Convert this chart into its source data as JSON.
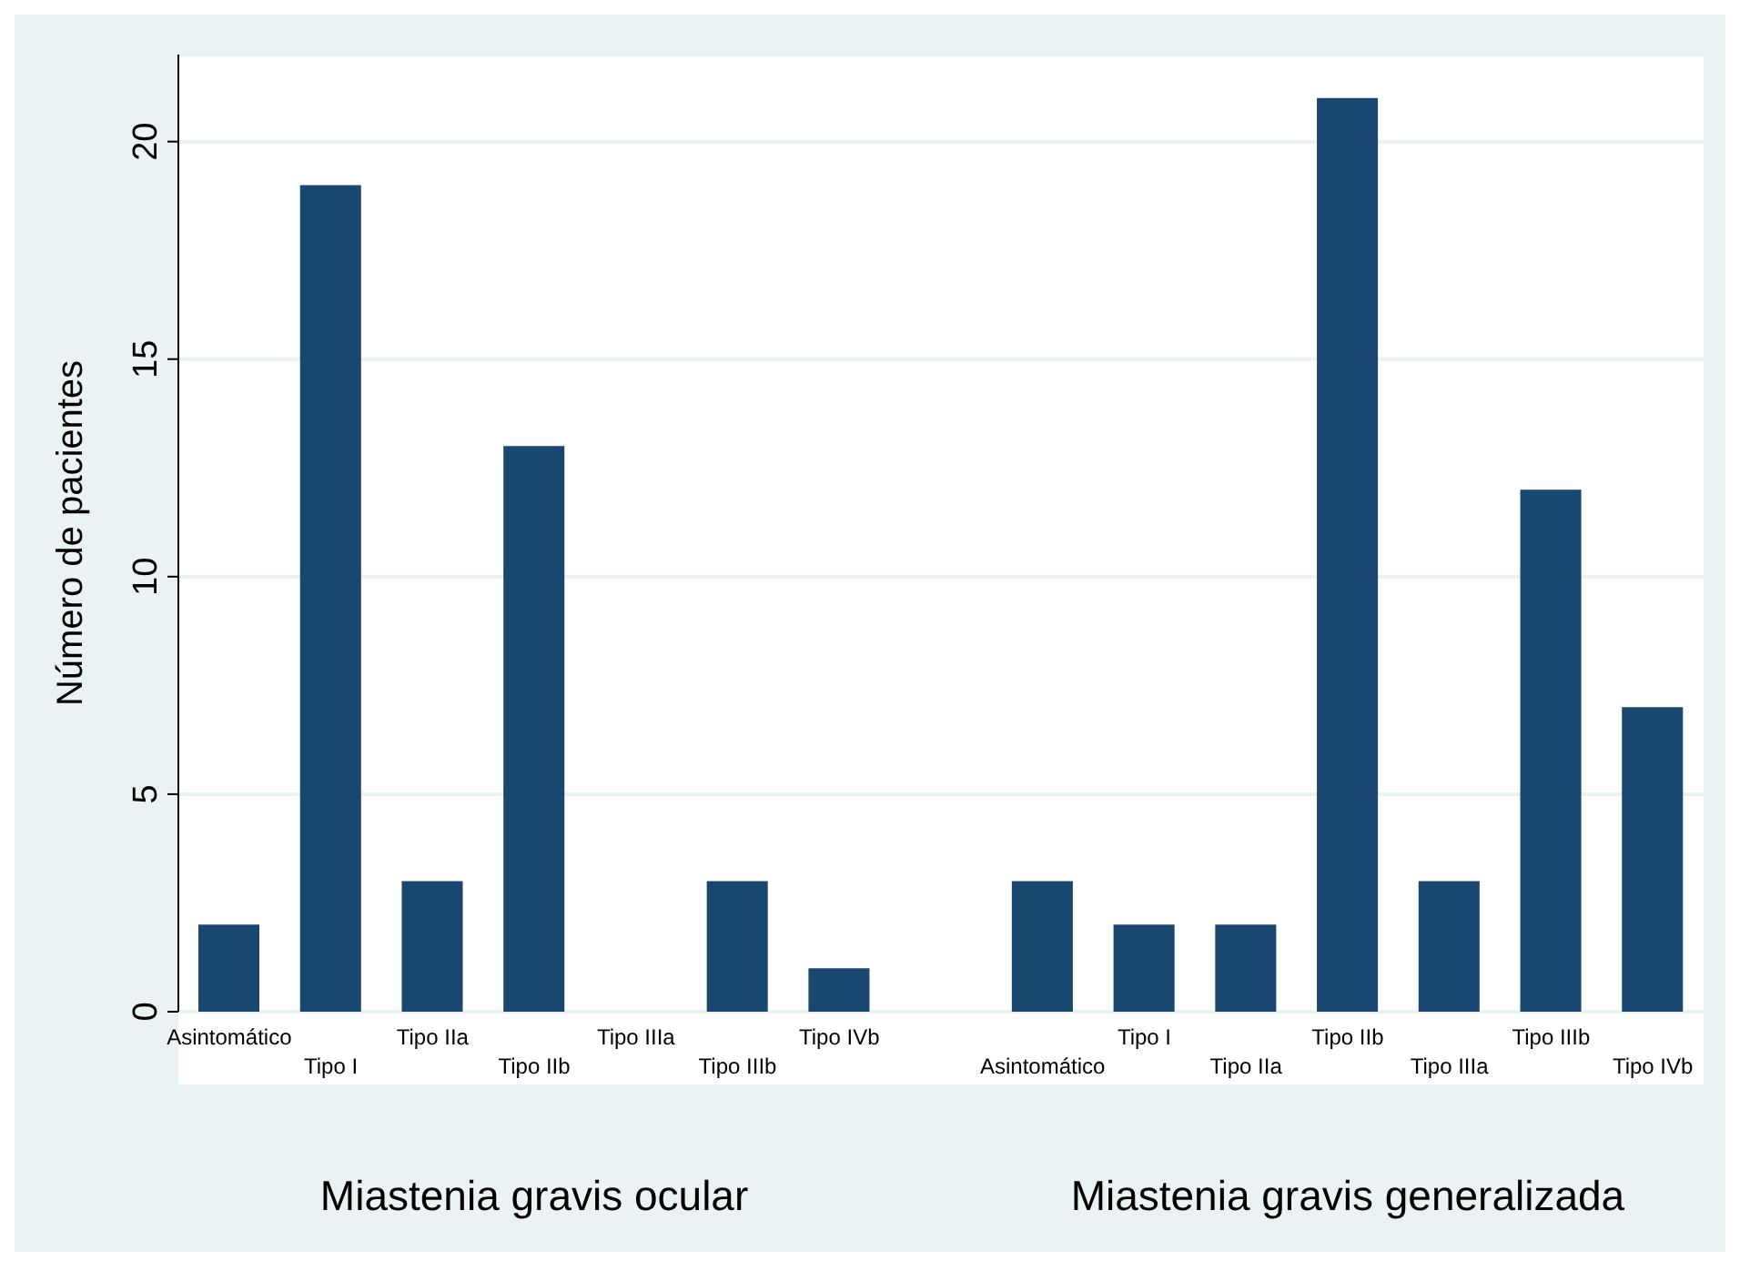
{
  "chart_data": {
    "type": "bar",
    "ylabel": "Número de pacientes",
    "categories": [
      "Asintomático",
      "Tipo I",
      "Tipo IIa",
      "Tipo IIb",
      "Tipo IIIa",
      "Tipo IIIb",
      "Tipo IVb",
      null,
      "Asintomático",
      "Tipo I",
      "Tipo IIa",
      "Tipo IIb",
      "Tipo IIIa",
      "Tipo IIIb",
      "Tipo IVb"
    ],
    "values": [
      2,
      19,
      3,
      13,
      0,
      3,
      1,
      null,
      3,
      2,
      2,
      21,
      3,
      12,
      7
    ],
    "color": "#1a476f",
    "ylim": [
      0,
      22
    ],
    "yticks": [
      0,
      5,
      10,
      15,
      20
    ],
    "grid": "y",
    "annotations": [
      "Miastenia gravis ocular",
      "Miastenia gravis generalizada"
    ]
  }
}
